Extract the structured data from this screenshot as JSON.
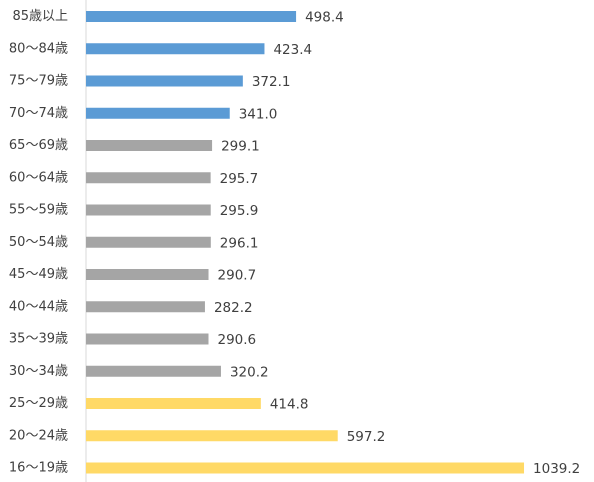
{
  "chart_data": {
    "type": "bar",
    "orientation": "horizontal",
    "title": "",
    "xlabel": "",
    "ylabel": "",
    "categories": [
      "85歳以上",
      "80～84歳",
      "75～79歳",
      "70～74歳",
      "65～69歳",
      "60～64歳",
      "55～59歳",
      "50～54歳",
      "45～49歳",
      "40～44歳",
      "35～39歳",
      "30～34歳",
      "25～29歳",
      "20～24歳",
      "16～19歳"
    ],
    "values": [
      498.4,
      423.4,
      372.1,
      341.0,
      299.1,
      295.7,
      295.9,
      296.1,
      290.7,
      282.2,
      290.6,
      320.2,
      414.8,
      597.2,
      1039.2
    ],
    "value_labels": [
      "498.4",
      "423.4",
      "372.1",
      "341.0",
      "299.1",
      "295.7",
      "295.9",
      "296.1",
      "290.7",
      "282.2",
      "290.6",
      "320.2",
      "414.8",
      "597.2",
      "1039.2"
    ],
    "bar_colors": [
      "#5b9bd5",
      "#5b9bd5",
      "#5b9bd5",
      "#5b9bd5",
      "#a5a5a5",
      "#a5a5a5",
      "#a5a5a5",
      "#a5a5a5",
      "#a5a5a5",
      "#a5a5a5",
      "#a5a5a5",
      "#a5a5a5",
      "#ffd966",
      "#ffd966",
      "#ffd966"
    ],
    "xlim": [
      0,
      1039.2
    ],
    "grid": false,
    "legend": "none"
  }
}
